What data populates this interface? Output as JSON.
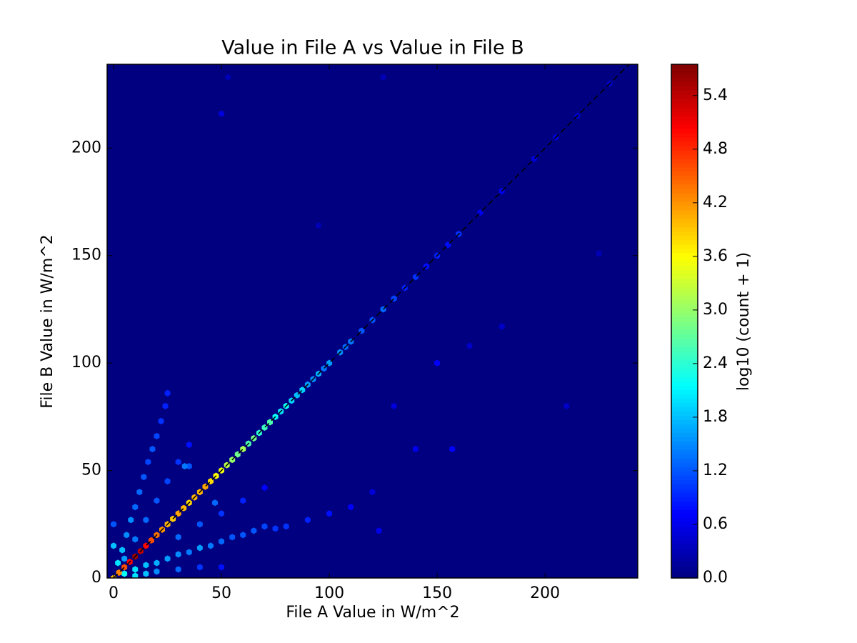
{
  "chart_data": {
    "type": "hexbin",
    "title": "Value in File A vs Value in File B",
    "x_label": "File A Value in W/m^2",
    "y_label": "File B Value in W/m^2",
    "colorbar_label": "log10 (count + 1)",
    "colormap": "jet",
    "identity_line": true,
    "identity_line_color": "#000000",
    "xlim": [
      -3,
      243
    ],
    "ylim": [
      0,
      239
    ],
    "xticks": [
      0,
      50,
      100,
      150,
      200
    ],
    "yticks": [
      0,
      50,
      100,
      150,
      200
    ],
    "clim": [
      0,
      5.75
    ],
    "cticks": [
      {
        "value": 0,
        "label": "0.0"
      },
      0.6,
      1.2,
      1.8,
      2.4,
      {
        "value": 3,
        "label": "3.0"
      },
      3.6,
      4.2,
      4.8,
      5.4
    ],
    "x": [
      0,
      2.5,
      5,
      7.5,
      10,
      12.5,
      15,
      17.5,
      20,
      22.5,
      25,
      27.5,
      30,
      32.5,
      35,
      37.5,
      40,
      42.5,
      45,
      47.5,
      50,
      52.5,
      55,
      57.5,
      60,
      62.5,
      65,
      67.5,
      70,
      72.5,
      75,
      77.5,
      80,
      82.5,
      85,
      87.5,
      90,
      92.5,
      95,
      97.5,
      100,
      105,
      107.5,
      110,
      115,
      120,
      125,
      130,
      135,
      140,
      145,
      150,
      155,
      160,
      170,
      180,
      195,
      205,
      215,
      230,
      2,
      4,
      6,
      8,
      10,
      12,
      14,
      16,
      18,
      20,
      22,
      24,
      25,
      5,
      10,
      15,
      20,
      25,
      30,
      35,
      0,
      0,
      10,
      15,
      20,
      25,
      30,
      35,
      40,
      45,
      50,
      55,
      60,
      65,
      70,
      75,
      80,
      90,
      100,
      110,
      120,
      5,
      10,
      15,
      20,
      30,
      40,
      50,
      30,
      40,
      50,
      60,
      70,
      47,
      33,
      35,
      150,
      157,
      140,
      95,
      50,
      53,
      125,
      180,
      210,
      225,
      130,
      165,
      123
    ],
    "y": [
      0,
      2.5,
      5,
      7.5,
      10,
      12.5,
      15,
      17.5,
      20,
      22.5,
      25,
      27.5,
      30,
      32.5,
      35,
      37.5,
      40,
      42.5,
      45,
      47.5,
      50,
      52.5,
      55,
      57.5,
      60,
      62.5,
      65,
      67.5,
      70,
      72.5,
      75,
      77.5,
      80,
      82.5,
      85,
      87.5,
      90,
      92.5,
      95,
      97.5,
      100,
      105,
      107.5,
      110,
      115,
      120,
      125,
      130,
      135,
      140,
      145,
      150,
      155,
      160,
      170,
      180,
      195,
      205,
      215,
      230,
      7,
      13,
      20,
      27,
      33,
      40,
      47,
      54,
      60,
      66,
      73,
      80,
      86,
      9,
      18,
      27,
      36,
      45,
      54,
      62,
      15,
      25,
      4,
      6,
      7,
      9,
      11,
      12,
      14,
      15,
      17,
      19,
      20,
      22,
      24,
      23,
      24,
      27,
      30,
      33,
      40,
      2,
      1,
      2,
      3,
      4,
      5,
      5,
      19,
      25,
      30,
      36,
      42,
      35,
      52,
      52,
      100,
      60,
      60,
      164,
      216,
      233,
      233,
      117,
      80,
      151,
      80,
      108,
      22
    ],
    "values": [
      4.0,
      4.3,
      4.6,
      5.0,
      5.6,
      5.4,
      5.0,
      4.6,
      4.4,
      4.2,
      4.0,
      3.9,
      4.1,
      4.0,
      3.8,
      4.0,
      4.0,
      4.1,
      3.8,
      3.6,
      3.5,
      3.2,
      3.0,
      2.8,
      3.1,
      2.6,
      2.8,
      2.4,
      2.5,
      2.6,
      2.2,
      2.0,
      2.2,
      1.9,
      1.8,
      1.9,
      1.6,
      1.5,
      1.7,
      1.4,
      1.6,
      1.5,
      1.3,
      1.4,
      1.2,
      1.2,
      1.3,
      1.1,
      0.9,
      1.0,
      0.8,
      0.9,
      0.8,
      1.0,
      0.6,
      0.6,
      0.5,
      0.5,
      0.4,
      0.4,
      2.0,
      1.8,
      1.5,
      1.5,
      1.3,
      1.3,
      1.2,
      1.1,
      1.2,
      1.1,
      1.0,
      0.9,
      0.9,
      1.6,
      1.4,
      1.3,
      1.2,
      1.1,
      1.0,
      0.8,
      1.8,
      1.2,
      2.0,
      1.8,
      1.7,
      1.6,
      1.5,
      1.4,
      1.6,
      1.4,
      1.3,
      1.2,
      1.2,
      1.2,
      1.1,
      1.0,
      1.0,
      0.9,
      0.8,
      0.7,
      0.5,
      2.2,
      2.0,
      1.8,
      1.5,
      1.3,
      1.0,
      0.8,
      1.3,
      1.2,
      1.0,
      0.9,
      0.7,
      1.3,
      1.4,
      1.2,
      0.7,
      0.7,
      0.6,
      0.3,
      0.5,
      0.3,
      0.3,
      0.4,
      0.4,
      0.3,
      0.5,
      0.4,
      0.6
    ]
  }
}
